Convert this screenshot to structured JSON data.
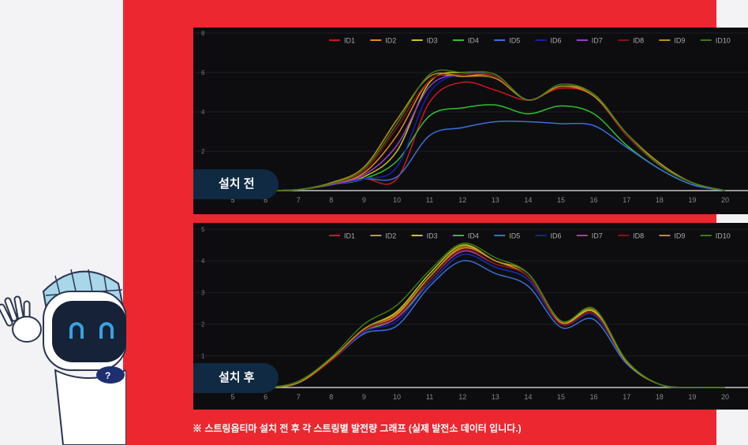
{
  "caption": "※ 스트링옵티마 설치 전 후 각 스트링별 발전량 그래프 (실제 발전소 데이터 입니다.)",
  "chart_data": [
    {
      "type": "line",
      "title": "설치 전",
      "ylim": [
        0,
        8
      ],
      "yticks": [
        0,
        2,
        4,
        6,
        8
      ],
      "x": [
        5,
        6,
        7,
        8,
        9,
        10,
        11,
        12,
        13,
        14,
        15,
        16,
        17,
        18,
        19,
        20
      ],
      "series": [
        {
          "name": "ID1",
          "color": "#d0161b",
          "values": [
            0,
            0,
            0.05,
            0.3,
            0.6,
            0.6,
            4.5,
            5.5,
            5.1,
            4.6,
            5.2,
            4.8,
            2.8,
            1.3,
            0.4,
            0
          ]
        },
        {
          "name": "ID2",
          "color": "#e08a1e",
          "values": [
            0,
            0,
            0.05,
            0.35,
            0.9,
            2.8,
            5.6,
            5.8,
            5.8,
            4.6,
            5.3,
            4.9,
            2.9,
            1.4,
            0.4,
            0
          ]
        },
        {
          "name": "ID3",
          "color": "#c8c81a",
          "values": [
            0,
            0,
            0.05,
            0.3,
            0.7,
            2.0,
            5.5,
            6.0,
            5.8,
            4.6,
            5.3,
            4.8,
            2.8,
            1.3,
            0.4,
            0
          ]
        },
        {
          "name": "ID4",
          "color": "#2fbf2f",
          "values": [
            0,
            0,
            0.05,
            0.3,
            0.6,
            1.5,
            3.8,
            4.2,
            4.35,
            3.9,
            4.3,
            3.9,
            2.3,
            1.1,
            0.3,
            0
          ]
        },
        {
          "name": "ID5",
          "color": "#3a6fd8",
          "values": [
            0,
            0,
            0.05,
            0.3,
            0.6,
            0.7,
            2.8,
            3.2,
            3.5,
            3.5,
            3.4,
            3.3,
            2.2,
            1.1,
            0.3,
            0
          ]
        },
        {
          "name": "ID6",
          "color": "#1420b0",
          "values": [
            0,
            0,
            0.05,
            0.3,
            0.6,
            1.2,
            5.0,
            5.9,
            5.8,
            4.6,
            5.3,
            4.8,
            2.8,
            1.3,
            0.4,
            0
          ]
        },
        {
          "name": "ID7",
          "color": "#9a3fc8",
          "values": [
            0,
            0,
            0.05,
            0.3,
            0.8,
            2.3,
            5.3,
            5.9,
            5.8,
            4.6,
            5.3,
            4.8,
            2.8,
            1.3,
            0.4,
            0
          ]
        },
        {
          "name": "ID8",
          "color": "#8a1010",
          "values": [
            0,
            0,
            0.05,
            0.35,
            1.0,
            3.2,
            5.6,
            5.9,
            5.8,
            4.6,
            5.3,
            4.8,
            2.8,
            1.3,
            0.4,
            0
          ]
        },
        {
          "name": "ID9",
          "color": "#b8901a",
          "values": [
            0,
            0,
            0.05,
            0.4,
            1.2,
            3.6,
            5.8,
            5.8,
            5.7,
            4.6,
            5.3,
            4.8,
            2.9,
            1.4,
            0.4,
            0
          ]
        },
        {
          "name": "ID10",
          "color": "#3e7a16",
          "values": [
            0,
            0,
            0.05,
            0.35,
            1.1,
            3.4,
            5.9,
            6.0,
            5.9,
            4.6,
            5.4,
            4.9,
            2.9,
            1.3,
            0.4,
            0
          ]
        }
      ]
    },
    {
      "type": "line",
      "title": "설치 후",
      "ylim": [
        0,
        5
      ],
      "yticks": [
        0,
        1,
        2,
        3,
        4,
        5
      ],
      "x": [
        5,
        6,
        7,
        8,
        9,
        10,
        11,
        12,
        13,
        14,
        15,
        16,
        17,
        18,
        19,
        20
      ],
      "series": [
        {
          "name": "ID1",
          "color": "#d0161b",
          "values": [
            0,
            0,
            0.15,
            0.85,
            1.75,
            2.2,
            3.4,
            4.3,
            3.9,
            3.5,
            2.0,
            2.3,
            0.8,
            0.1,
            0,
            0
          ]
        },
        {
          "name": "ID2",
          "color": "#e08a1e",
          "values": [
            0,
            0,
            0.15,
            0.9,
            1.8,
            2.3,
            3.5,
            4.4,
            4.0,
            3.5,
            2.05,
            2.4,
            0.8,
            0.1,
            0,
            0
          ]
        },
        {
          "name": "ID3",
          "color": "#c8c81a",
          "values": [
            0,
            0,
            0.15,
            0.9,
            1.85,
            2.4,
            3.6,
            4.5,
            4.0,
            3.6,
            2.1,
            2.4,
            0.8,
            0.1,
            0,
            0
          ]
        },
        {
          "name": "ID4",
          "color": "#2fbf2f",
          "values": [
            0,
            0,
            0.15,
            0.85,
            1.75,
            2.2,
            3.3,
            4.2,
            3.8,
            3.4,
            2.0,
            2.3,
            0.8,
            0.1,
            0,
            0
          ]
        },
        {
          "name": "ID5",
          "color": "#3a6fd8",
          "values": [
            0,
            0,
            0.15,
            0.85,
            1.7,
            1.95,
            3.2,
            4.0,
            3.6,
            3.2,
            1.9,
            2.15,
            0.75,
            0.1,
            0,
            0
          ]
        },
        {
          "name": "ID6",
          "color": "#1420b0",
          "values": [
            0,
            0,
            0.15,
            0.85,
            1.75,
            2.1,
            3.3,
            4.2,
            3.8,
            3.4,
            2.0,
            2.3,
            0.8,
            0.1,
            0,
            0
          ]
        },
        {
          "name": "ID7",
          "color": "#9a3fc8",
          "values": [
            0,
            0,
            0.15,
            0.85,
            1.8,
            2.2,
            3.4,
            4.3,
            3.9,
            3.5,
            2.0,
            2.35,
            0.8,
            0.1,
            0,
            0
          ]
        },
        {
          "name": "ID8",
          "color": "#8a1010",
          "values": [
            0,
            0,
            0.15,
            0.85,
            1.8,
            2.25,
            3.4,
            4.35,
            3.9,
            3.5,
            2.0,
            2.35,
            0.8,
            0.1,
            0,
            0
          ]
        },
        {
          "name": "ID9",
          "color": "#b8901a",
          "values": [
            0,
            0,
            0.15,
            0.9,
            1.85,
            2.35,
            3.5,
            4.45,
            4.0,
            3.6,
            2.1,
            2.45,
            0.8,
            0.1,
            0,
            0
          ]
        },
        {
          "name": "ID10",
          "color": "#3e7a16",
          "values": [
            0,
            0,
            0.2,
            0.95,
            2.0,
            2.6,
            3.7,
            4.55,
            4.1,
            3.6,
            2.1,
            2.5,
            0.85,
            0.1,
            0,
            0
          ]
        }
      ]
    }
  ]
}
